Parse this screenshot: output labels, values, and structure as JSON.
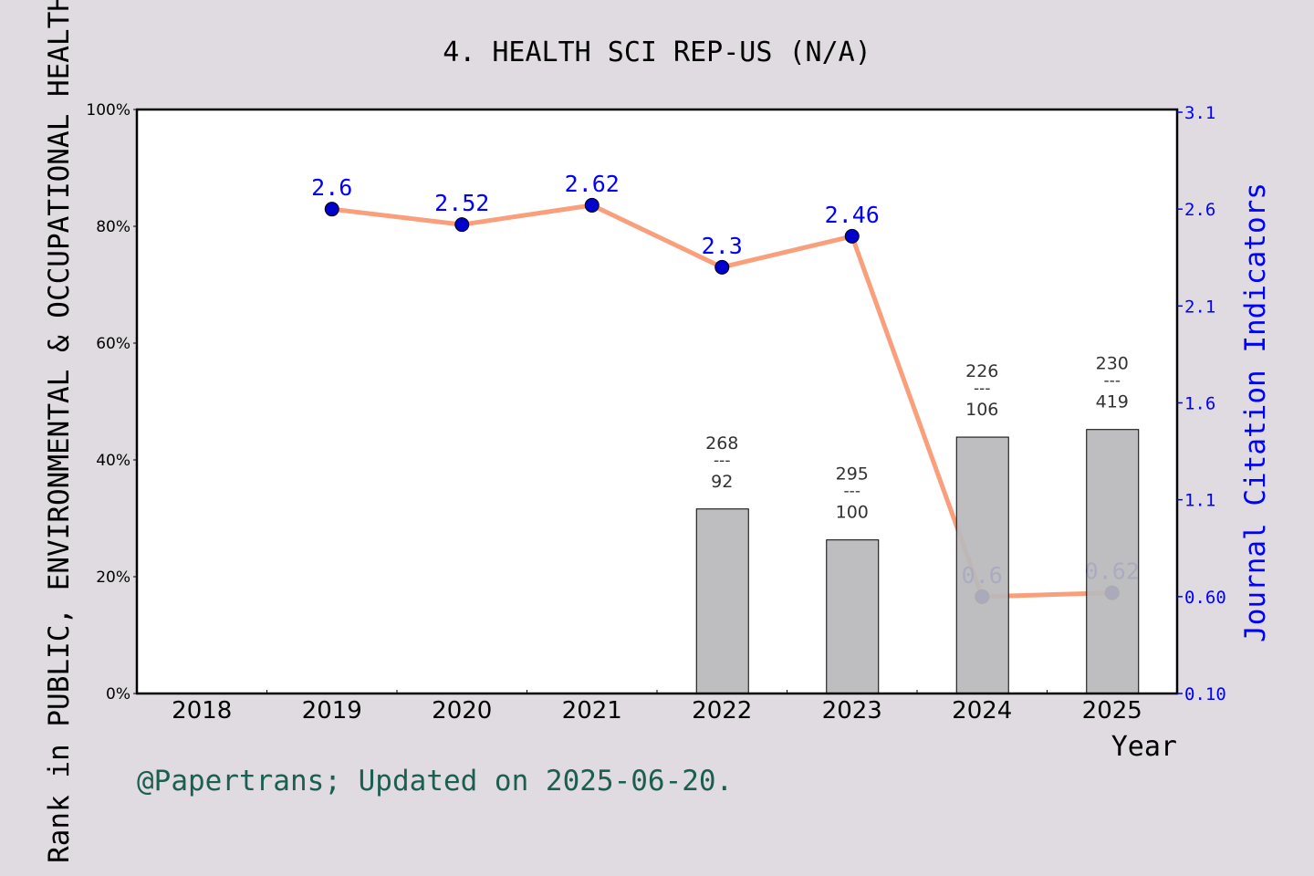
{
  "chart_data": {
    "type": "bar+line",
    "title": "4. HEALTH SCI REP-US (N/A)",
    "xlabel": "Year",
    "ylabel_left": "Rank in PUBLIC, ENVIRONMENTAL & OCCUPATIONAL HEALTH",
    "ylabel_right": "Journal Citation Indicators",
    "categories": [
      "2018",
      "2019",
      "2020",
      "2021",
      "2022",
      "2023",
      "2024",
      "2025"
    ],
    "left_axis": {
      "ylim": [
        0,
        100
      ],
      "ticks": [
        "0%",
        "20%",
        "40%",
        "60%",
        "80%",
        "100%"
      ]
    },
    "right_axis": {
      "ylim": [
        0.1,
        3.1
      ],
      "ticks": [
        "0.10",
        "0.60",
        "1.1",
        "1.6",
        "2.1",
        "2.6",
        "3.1"
      ]
    },
    "bars": {
      "values_percent": [
        null,
        null,
        null,
        null,
        31.6,
        26.3,
        43.9,
        45.2
      ],
      "labels": [
        null,
        null,
        null,
        null,
        {
          "top": "268",
          "bottom": "92"
        },
        {
          "top": "295",
          "bottom": "100"
        },
        {
          "top": "226",
          "bottom": "106"
        },
        {
          "top": "230",
          "bottom": "419"
        }
      ],
      "separator": "---",
      "color": "#b8b9bb"
    },
    "line": {
      "values": [
        null,
        2.6,
        2.52,
        2.62,
        2.3,
        2.46,
        0.6,
        0.62
      ],
      "labels": [
        null,
        "2.6",
        "2.52",
        "2.62",
        "2.3",
        "2.46",
        "0.6",
        "0.62"
      ],
      "line_color": "#fa9f7c",
      "marker_color": "#0000cc"
    },
    "grid": false
  },
  "footer": "@Papertrans; Updated on 2025-06-20."
}
